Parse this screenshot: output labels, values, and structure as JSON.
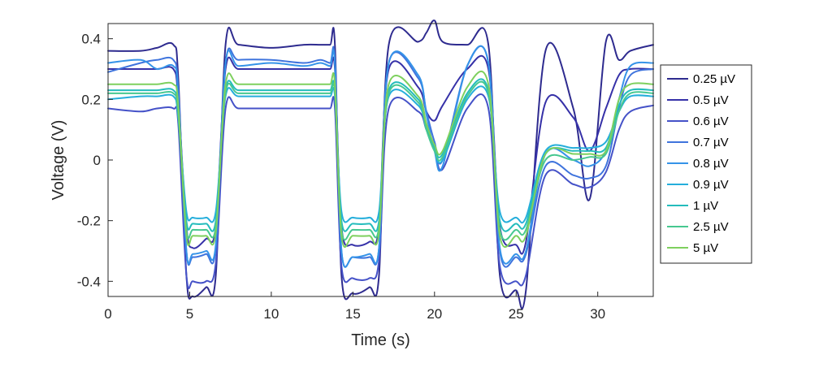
{
  "chart_data": {
    "type": "line",
    "xlabel": "Time (s)",
    "ylabel": "Voltage (V)",
    "xlim": [
      0,
      33.4
    ],
    "ylim": [
      -0.45,
      0.45
    ],
    "xticks": [
      "0",
      "5",
      "10",
      "15",
      "20",
      "25",
      "30"
    ],
    "yticks": [
      "-0.4",
      "-0.2",
      "0",
      "0.2",
      "0.4"
    ],
    "grid": false,
    "legend_position": "right",
    "series": [
      {
        "name": "0.25 µV",
        "color": "#2e2b8f",
        "values": [
          0.36,
          0.36,
          0.37,
          0.38,
          0.27,
          -0.38,
          -0.45,
          -0.42,
          -0.38,
          0.38,
          0.38,
          0.37,
          0.38,
          0.38,
          0.38,
          0.38,
          -0.38,
          -0.44,
          -0.42,
          -0.38,
          0.38,
          0.39,
          0.42,
          0.46,
          0.39,
          0.38,
          0.38,
          -0.38,
          -0.43,
          -0.43,
          0.36,
          0.17,
          -0.13,
          0.39,
          0.33,
          0.36,
          0.38
        ]
      },
      {
        "name": "0.5 µV",
        "color": "#3631a8",
        "values": [
          0.3,
          0.3,
          0.3,
          0.3,
          0.2,
          -0.22,
          -0.29,
          -0.26,
          -0.22,
          0.3,
          0.3,
          0.3,
          0.3,
          0.3,
          0.3,
          0.3,
          -0.22,
          -0.28,
          -0.27,
          -0.22,
          0.3,
          0.24,
          0.16,
          0.13,
          0.18,
          0.3,
          0.3,
          -0.22,
          -0.28,
          -0.27,
          0.19,
          0.14,
          0.03,
          0.17,
          0.28,
          0.3,
          0.3
        ]
      },
      {
        "name": "0.6 µV",
        "color": "#4552c8",
        "values": [
          0.17,
          0.16,
          0.17,
          0.17,
          0.12,
          -0.38,
          -0.4,
          -0.4,
          -0.34,
          0.17,
          0.17,
          0.17,
          0.17,
          0.17,
          0.17,
          0.17,
          -0.35,
          -0.39,
          -0.39,
          -0.33,
          0.17,
          0.16,
          0.1,
          0.04,
          -0.03,
          0.17,
          0.17,
          -0.35,
          -0.4,
          -0.38,
          -0.05,
          -0.08,
          -0.09,
          -0.04,
          0.1,
          0.16,
          0.18
        ]
      },
      {
        "name": "0.7 µV",
        "color": "#3f74dd",
        "values": [
          0.29,
          0.32,
          0.33,
          0.33,
          0.23,
          -0.3,
          -0.32,
          -0.31,
          -0.29,
          0.32,
          0.33,
          0.33,
          0.32,
          0.33,
          0.32,
          0.33,
          -0.3,
          -0.32,
          -0.32,
          -0.29,
          0.32,
          0.27,
          0.16,
          0.06,
          0.0,
          0.31,
          0.32,
          -0.3,
          -0.32,
          -0.31,
          -0.02,
          -0.05,
          -0.06,
          -0.02,
          0.17,
          0.28,
          0.3
        ]
      },
      {
        "name": "0.8 µV",
        "color": "#3593e8",
        "values": [
          0.32,
          0.33,
          0.3,
          0.31,
          0.22,
          -0.3,
          -0.31,
          -0.3,
          -0.28,
          0.32,
          0.31,
          0.32,
          0.31,
          0.32,
          0.31,
          0.32,
          -0.3,
          -0.32,
          -0.31,
          -0.29,
          0.32,
          0.28,
          0.15,
          0.03,
          -0.02,
          0.31,
          0.32,
          -0.29,
          -0.31,
          -0.3,
          0.02,
          0.0,
          -0.02,
          0.03,
          0.2,
          0.31,
          0.32
        ]
      },
      {
        "name": "0.9 µV",
        "color": "#25aedb",
        "values": [
          0.2,
          0.21,
          0.21,
          0.21,
          0.14,
          -0.17,
          -0.19,
          -0.19,
          -0.17,
          0.21,
          0.21,
          0.21,
          0.21,
          0.21,
          0.21,
          0.21,
          -0.17,
          -0.19,
          -0.19,
          -0.17,
          0.21,
          0.18,
          0.1,
          0.03,
          0.0,
          0.2,
          0.21,
          -0.17,
          -0.19,
          -0.19,
          0.03,
          0.04,
          0.04,
          0.06,
          0.16,
          0.21,
          0.21
        ]
      },
      {
        "name": "1 µV",
        "color": "#24bcbc",
        "values": [
          0.23,
          0.23,
          0.23,
          0.23,
          0.16,
          -0.2,
          -0.21,
          -0.21,
          -0.2,
          0.23,
          0.23,
          0.23,
          0.23,
          0.23,
          0.23,
          0.23,
          -0.2,
          -0.21,
          -0.21,
          -0.2,
          0.23,
          0.2,
          0.11,
          0.04,
          0.02,
          0.22,
          0.23,
          -0.2,
          -0.21,
          -0.21,
          0.02,
          0.03,
          0.03,
          0.04,
          0.18,
          0.23,
          0.23
        ]
      },
      {
        "name": "2.5 µV",
        "color": "#47c890",
        "values": [
          0.22,
          0.22,
          0.22,
          0.22,
          0.15,
          -0.23,
          -0.23,
          -0.23,
          -0.22,
          0.22,
          0.22,
          0.22,
          0.22,
          0.22,
          0.22,
          0.22,
          -0.23,
          -0.23,
          -0.23,
          -0.22,
          0.22,
          0.19,
          0.1,
          0.03,
          0.01,
          0.21,
          0.22,
          -0.23,
          -0.23,
          -0.23,
          0.0,
          0.0,
          0.01,
          0.02,
          0.16,
          0.22,
          0.22
        ]
      },
      {
        "name": "5 µV",
        "color": "#7ed05e",
        "values": [
          0.25,
          0.25,
          0.25,
          0.25,
          0.18,
          -0.25,
          -0.25,
          -0.25,
          -0.24,
          0.25,
          0.25,
          0.25,
          0.25,
          0.25,
          0.25,
          0.25,
          -0.25,
          -0.25,
          -0.25,
          -0.24,
          0.25,
          0.21,
          0.12,
          0.05,
          0.03,
          0.24,
          0.25,
          -0.25,
          -0.25,
          -0.25,
          0.02,
          0.02,
          0.02,
          0.03,
          0.2,
          0.25,
          0.25
        ]
      }
    ],
    "x": [
      0,
      2,
      3,
      4,
      4.3,
      4.8,
      5.2,
      6,
      6.6,
      7.2,
      8,
      10,
      12,
      13,
      13.6,
      13.9,
      14.3,
      15,
      16,
      16.6,
      17.2,
      19,
      19.5,
      20,
      20.5,
      22,
      23.3,
      24,
      25,
      25.6,
      26.8,
      28.5,
      29.5,
      30.5,
      31.3,
      32,
      33.4
    ]
  }
}
